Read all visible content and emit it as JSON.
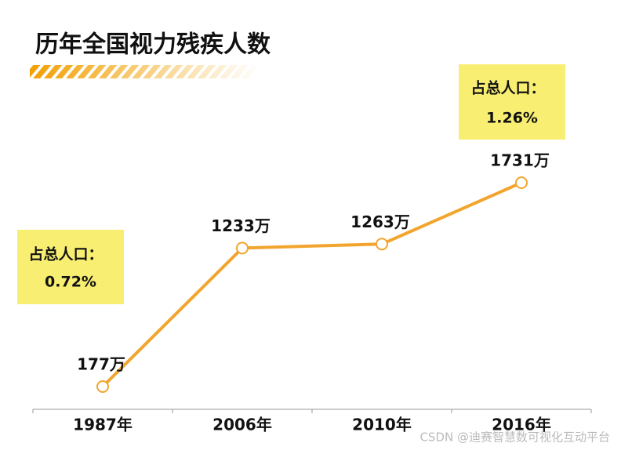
{
  "chart_data": {
    "type": "line",
    "title": "历年全国视力残疾人数",
    "categories": [
      "1987年",
      "2006年",
      "2010年",
      "2016年"
    ],
    "values": [
      177,
      1233,
      1263,
      1731
    ],
    "value_labels": [
      "177万",
      "1233万",
      "1263万",
      "1731万"
    ],
    "color": "#f2a52e",
    "annotations": [
      {
        "title": "占总人口：",
        "value": "0.72%"
      },
      {
        "title": "占总人口：",
        "value": "1.26%"
      }
    ],
    "watermark": "CSDN @迪赛智慧数可视化互动平台"
  }
}
